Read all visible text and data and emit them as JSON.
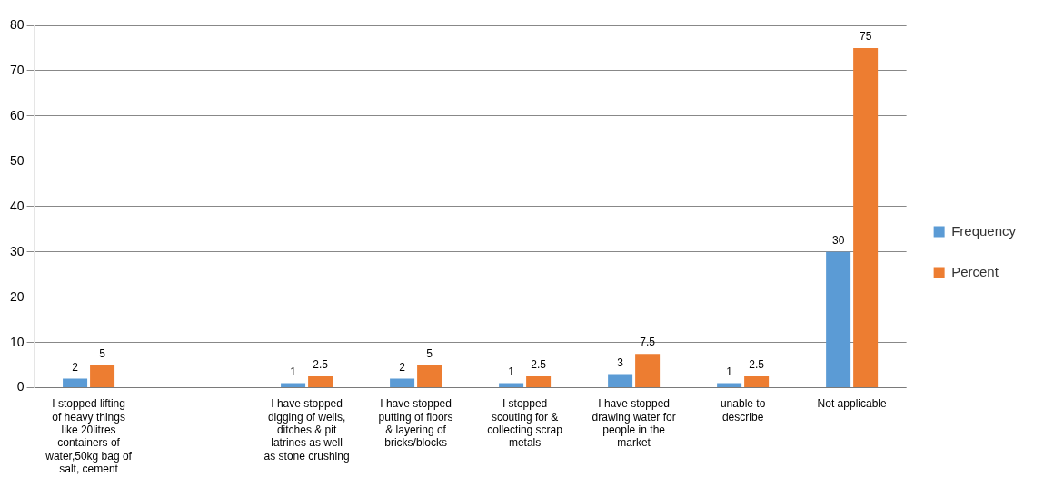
{
  "chart_data": {
    "type": "bar",
    "categories": [
      "I stopped lifting of heavy things like 20litres containers of water,50kg bag of salt, cement",
      null,
      "I have stopped digging of wells, ditches & pit latrines as well as stone crushing",
      "I have stopped putting of floors & layering of bricks/blocks",
      "I stopped scouting for & collecting scrap metals",
      "I have stopped drawing water for people in the market",
      "unable to describe",
      "Not applicable"
    ],
    "series": [
      {
        "name": "Frequency",
        "color": "#5b9bd5",
        "values": [
          2,
          null,
          1,
          2,
          1,
          3,
          1,
          30
        ]
      },
      {
        "name": "Percent",
        "color": "#ed7d31",
        "values": [
          5,
          null,
          2.5,
          5,
          2.5,
          7.5,
          2.5,
          75
        ]
      }
    ],
    "ylim": [
      0,
      80
    ],
    "yticks": [
      0,
      10,
      20,
      30,
      40,
      50,
      60,
      70,
      80
    ],
    "grid": "y",
    "legend": "right",
    "data_labels": true
  }
}
